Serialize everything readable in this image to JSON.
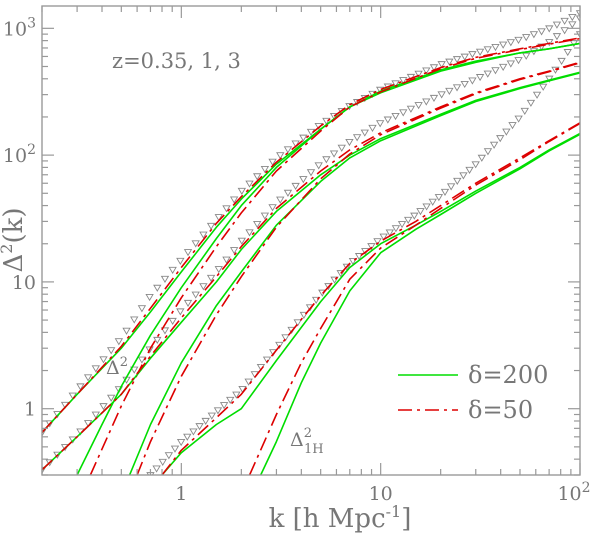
{
  "chart_data": {
    "type": "line",
    "x_scale": "log",
    "y_scale": "log",
    "xlim": [
      0.2,
      100
    ],
    "ylim": [
      0.3,
      1500
    ],
    "grid": false,
    "legend_position": "lower-right",
    "x_tick_labels": [
      {
        "value": 1,
        "label": "1"
      },
      {
        "value": 10,
        "label": "10"
      },
      {
        "value": 100,
        "base": "10",
        "exp": "2"
      }
    ],
    "y_tick_labels": [
      {
        "value": 1,
        "label": "1"
      },
      {
        "value": 10,
        "label": "10"
      },
      {
        "value": 100,
        "base": "10",
        "exp": "2"
      },
      {
        "value": 1000,
        "base": "10",
        "exp": "3"
      }
    ],
    "xlabel": {
      "main": "k [h Mpc",
      "sup": "-1",
      "close": "]"
    },
    "ylabel": {
      "main": "Δ",
      "sup": "2",
      "rest": "(k)"
    },
    "annotations": {
      "redshifts": "z=0.35, 1, 3",
      "total": {
        "base": "Δ",
        "sup": "2"
      },
      "one_halo": {
        "base": "Δ",
        "sup": "2",
        "sub": "1H"
      }
    },
    "legend": [
      {
        "label": "δ=200",
        "style": "solid",
        "color": "#00dd00"
      },
      {
        "label": "δ=50",
        "style": "dashdot",
        "color": "#dd0000"
      }
    ],
    "colors": {
      "solid": "#00dd00",
      "dashdot": "#dd0000",
      "markers": "#888888",
      "axes": "#999999",
      "text": "#777777"
    },
    "series": [
      {
        "group": "z=0.35",
        "kind": "simulation",
        "style": "triangles",
        "x": [
          0.2,
          0.3,
          0.5,
          0.7,
          1,
          1.5,
          2,
          3,
          5,
          7,
          10,
          20,
          30,
          50,
          70,
          100
        ],
        "y": [
          0.65,
          1.4,
          3.6,
          7.8,
          15,
          31,
          52,
          95,
          175,
          245,
          330,
          520,
          640,
          820,
          1000,
          1320
        ]
      },
      {
        "group": "z=0.35",
        "kind": "total",
        "style": "solid",
        "x": [
          0.2,
          0.3,
          0.5,
          0.7,
          1,
          1.5,
          2,
          3,
          5,
          7,
          10,
          20,
          30,
          50,
          70,
          100
        ],
        "y": [
          0.65,
          1.3,
          3.0,
          5.8,
          12,
          27,
          45,
          85,
          160,
          240,
          320,
          470,
          550,
          640,
          690,
          760
        ]
      },
      {
        "group": "z=0.35",
        "kind": "total",
        "style": "dashdot",
        "x": [
          0.2,
          0.3,
          0.5,
          0.7,
          1,
          1.5,
          2,
          3,
          5,
          7,
          10,
          20,
          30,
          50,
          70,
          100
        ],
        "y": [
          0.65,
          1.3,
          3.1,
          6.2,
          13,
          29,
          47,
          88,
          170,
          250,
          330,
          490,
          590,
          690,
          760,
          840
        ]
      },
      {
        "group": "z=0.35",
        "kind": "one_halo",
        "style": "solid",
        "x": [
          0.3,
          0.4,
          0.5,
          0.7,
          1,
          1.5,
          2,
          3,
          5,
          7,
          10,
          20,
          30,
          50,
          70,
          100
        ],
        "y": [
          0.3,
          0.75,
          1.5,
          3.8,
          9,
          22,
          40,
          80,
          160,
          240,
          310,
          460,
          540,
          640,
          690,
          760
        ]
      },
      {
        "group": "z=0.35",
        "kind": "one_halo",
        "style": "dashdot",
        "x": [
          0.35,
          0.5,
          0.7,
          1,
          1.5,
          2,
          3,
          5,
          7,
          10,
          20,
          30,
          50,
          70,
          100
        ],
        "y": [
          0.3,
          1.05,
          3.0,
          7.5,
          19,
          35,
          75,
          155,
          240,
          315,
          480,
          580,
          680,
          750,
          830
        ]
      },
      {
        "group": "z=1",
        "kind": "simulation",
        "style": "triangles",
        "x": [
          0.2,
          0.3,
          0.5,
          0.7,
          1,
          1.5,
          2,
          3,
          5,
          7,
          10,
          20,
          30,
          50,
          70,
          100
        ],
        "y": [
          0.33,
          0.62,
          1.5,
          3.0,
          6.0,
          12,
          21,
          42,
          86,
          128,
          180,
          300,
          400,
          570,
          780,
          1200
        ]
      },
      {
        "group": "z=1",
        "kind": "total",
        "style": "solid",
        "x": [
          0.2,
          0.3,
          0.5,
          0.7,
          1,
          1.5,
          2,
          3,
          5,
          7,
          10,
          20,
          30,
          50,
          70,
          100
        ],
        "y": [
          0.33,
          0.6,
          1.3,
          2.5,
          4.8,
          10,
          18,
          36,
          70,
          100,
          135,
          210,
          270,
          340,
          390,
          450
        ]
      },
      {
        "group": "z=1",
        "kind": "total",
        "style": "dashdot",
        "x": [
          0.2,
          0.3,
          0.5,
          0.7,
          1,
          1.5,
          2,
          3,
          5,
          7,
          10,
          20,
          30,
          50,
          70,
          100
        ],
        "y": [
          0.33,
          0.6,
          1.3,
          2.6,
          5.2,
          11,
          19,
          38,
          75,
          110,
          150,
          240,
          310,
          400,
          460,
          540
        ]
      },
      {
        "group": "z=1",
        "kind": "one_halo",
        "style": "solid",
        "x": [
          0.55,
          0.7,
          1,
          1.5,
          2,
          3,
          5,
          7,
          10,
          20,
          30,
          50,
          70,
          100
        ],
        "y": [
          0.3,
          0.75,
          2.3,
          6.5,
          12,
          28,
          62,
          95,
          130,
          205,
          265,
          335,
          385,
          445
        ]
      },
      {
        "group": "z=1",
        "kind": "one_halo",
        "style": "dashdot",
        "x": [
          0.6,
          0.7,
          1,
          1.5,
          2,
          3,
          5,
          7,
          10,
          20,
          30,
          50,
          70,
          100
        ],
        "y": [
          0.3,
          0.55,
          1.8,
          5.5,
          11,
          27,
          65,
          102,
          145,
          235,
          305,
          395,
          455,
          535
        ]
      },
      {
        "group": "z=3",
        "kind": "simulation",
        "style": "triangles",
        "x": [
          0.7,
          1,
          1.5,
          2,
          3,
          5,
          7,
          10,
          15,
          20,
          30,
          50,
          70,
          100
        ],
        "y": [
          0.3,
          0.55,
          0.95,
          1.4,
          3.0,
          8.0,
          14,
          22,
          34,
          48,
          85,
          200,
          400,
          900
        ]
      },
      {
        "group": "z=3",
        "kind": "total",
        "style": "solid",
        "x": [
          0.8,
          1,
          1.5,
          2,
          3,
          5,
          7,
          10,
          15,
          20,
          30,
          50,
          70,
          100
        ],
        "y": [
          0.3,
          0.45,
          0.75,
          1.0,
          2.4,
          7.0,
          13,
          20,
          28,
          36,
          52,
          80,
          110,
          148
        ]
      },
      {
        "group": "z=3",
        "kind": "total",
        "style": "dashdot",
        "x": [
          0.8,
          1,
          1.5,
          2,
          3,
          5,
          7,
          10,
          15,
          20,
          30,
          50,
          70,
          100
        ],
        "y": [
          0.3,
          0.47,
          0.85,
          1.3,
          2.9,
          7.8,
          14,
          21,
          30,
          40,
          60,
          95,
          130,
          180
        ]
      },
      {
        "group": "z=3",
        "kind": "one_halo",
        "style": "solid",
        "x": [
          2.5,
          3,
          4,
          5,
          7,
          10,
          15,
          20,
          30,
          50,
          70,
          100
        ],
        "y": [
          0.3,
          0.55,
          1.6,
          3.3,
          8.5,
          17,
          26,
          34,
          50,
          78,
          108,
          146
        ]
      },
      {
        "group": "z=3",
        "kind": "one_halo",
        "style": "dashdot",
        "x": [
          2.2,
          3,
          4,
          5,
          7,
          10,
          15,
          20,
          30,
          50,
          70,
          100
        ],
        "y": [
          0.3,
          0.9,
          2.3,
          4.3,
          10.5,
          18.5,
          28,
          38,
          58,
          92,
          128,
          178
        ]
      }
    ]
  }
}
